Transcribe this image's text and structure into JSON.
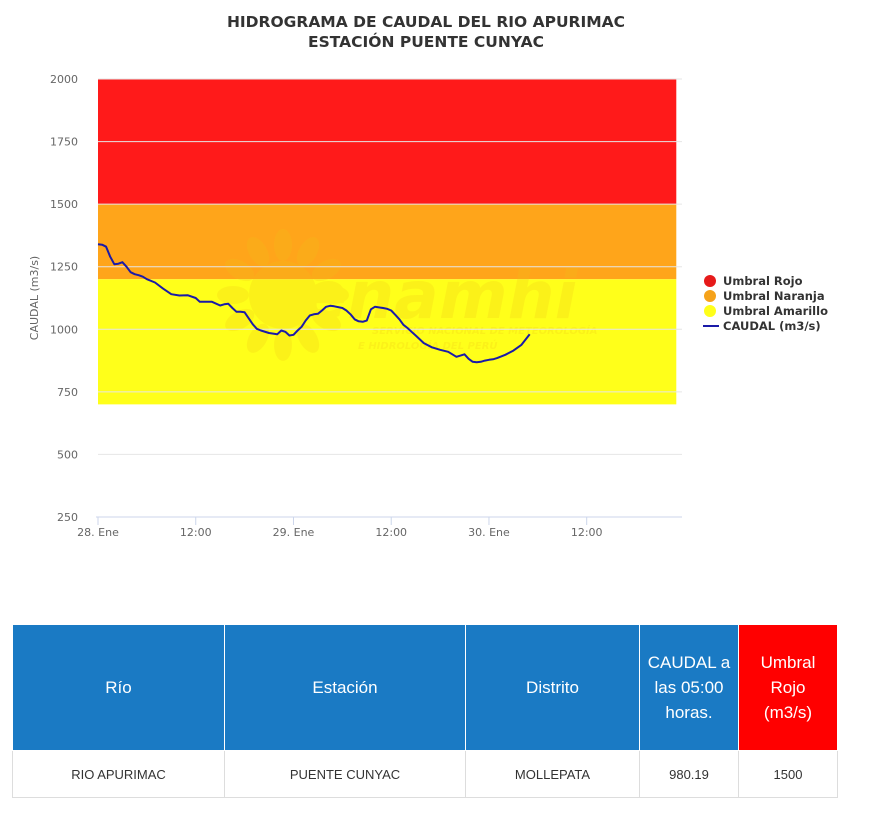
{
  "chart_data": {
    "type": "line",
    "title": [
      "HIDROGRAMA DE CAUDAL DEL RIO APURIMAC",
      "ESTACIÓN PUENTE CUNYAC"
    ],
    "ylabel": "CAUDAL (m3/s)",
    "xlabel": "",
    "ylim": [
      250,
      2000
    ],
    "y_ticks": [
      "2000",
      "1750",
      "1500",
      "1250",
      "1000",
      "750",
      "500",
      "250"
    ],
    "x_range_hours": [
      0,
      72
    ],
    "x_ticks": [
      {
        "label": "28. Ene",
        "hour": 0
      },
      {
        "label": "12:00",
        "hour": 12
      },
      {
        "label": "29. Ene",
        "hour": 24
      },
      {
        "label": "12:00",
        "hour": 36
      },
      {
        "label": "30. Ene",
        "hour": 48
      },
      {
        "label": "12:00",
        "hour": 60
      }
    ],
    "bands": [
      {
        "name": "Umbral Rojo",
        "from": 1500,
        "to": 2000,
        "color": "#ff1a1a"
      },
      {
        "name": "Umbral Naranja",
        "from": 1200,
        "to": 1500,
        "color": "#ffa51a"
      },
      {
        "name": "Umbral Amarillo",
        "from": 700,
        "to": 1200,
        "color": "#ffff1a"
      }
    ],
    "band_hours": [
      0,
      71
    ],
    "series": [
      {
        "name": "CAUDAL (m3/s)",
        "color": "#1a1aa8",
        "hours": [
          0,
          0.5,
          1,
          1.5,
          2,
          2.5,
          3,
          3.5,
          4,
          4.5,
          5,
          5.5,
          6,
          7,
          8,
          9,
          10,
          11,
          12,
          12.5,
          13,
          14,
          15,
          15.5,
          16,
          16.5,
          17,
          17.5,
          18,
          19,
          19.5,
          20,
          21,
          22,
          22.5,
          23,
          23.5,
          24,
          24.5,
          25,
          25.5,
          26,
          26.5,
          27,
          27.5,
          28,
          28.5,
          29,
          30,
          30.5,
          31,
          31.5,
          32,
          32.5,
          33,
          33.5,
          34,
          35,
          35.5,
          36,
          36.5,
          37,
          37.5,
          38,
          38.5,
          39,
          40,
          41,
          42,
          43,
          43.5,
          44,
          44.5,
          45,
          45.5,
          46,
          46.5,
          47,
          47.5,
          48,
          48.5,
          49,
          50,
          51,
          52,
          53
        ],
        "values": [
          1340,
          1338,
          1330,
          1290,
          1260,
          1262,
          1268,
          1250,
          1228,
          1220,
          1216,
          1210,
          1200,
          1187,
          1162,
          1140,
          1135,
          1136,
          1125,
          1110,
          1110,
          1110,
          1095,
          1100,
          1102,
          1085,
          1070,
          1070,
          1068,
          1020,
          1002,
          995,
          985,
          980,
          995,
          990,
          975,
          978,
          995,
          1010,
          1035,
          1055,
          1060,
          1062,
          1075,
          1090,
          1094,
          1092,
          1085,
          1075,
          1060,
          1040,
          1032,
          1030,
          1035,
          1080,
          1090,
          1085,
          1082,
          1075,
          1058,
          1040,
          1018,
          1005,
          990,
          975,
          945,
          928,
          918,
          910,
          900,
          890,
          895,
          900,
          882,
          870,
          868,
          870,
          875,
          878,
          880,
          885,
          898,
          915,
          938,
          980
        ]
      }
    ]
  },
  "legend": [
    {
      "label": "Umbral Rojo",
      "color": "#e61a1a",
      "kind": "dot"
    },
    {
      "label": "Umbral Naranja",
      "color": "#f5a21a",
      "kind": "dot"
    },
    {
      "label": "Umbral Amarillo",
      "color": "#ffff1a",
      "kind": "dot"
    },
    {
      "label": "CAUDAL (m3/s)",
      "color": "#1a1aa8",
      "kind": "line"
    }
  ],
  "watermark": {
    "brand": "Senamhi",
    "line1": "SERVICIO NACIONAL DE METEOROLOGÍA",
    "line2": "E HIDROLOGÍA DEL PERÚ"
  },
  "table": {
    "header_color": "#1a7ac4",
    "alert_color": "#ff0000",
    "headers": [
      "Río",
      "Estación",
      "Distrito",
      "CAUDAL a las 05:00 horas.",
      "Umbral Rojo (m3/s)"
    ],
    "rows": [
      [
        "RIO APURIMAC",
        "PUENTE CUNYAC",
        "MOLLEPATA",
        "980.19",
        "1500"
      ]
    ]
  }
}
